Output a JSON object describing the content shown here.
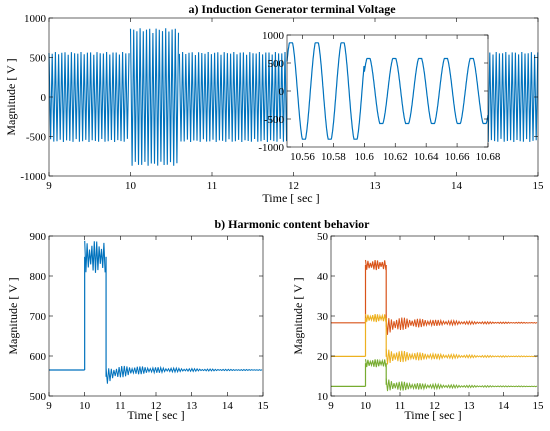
{
  "colors": {
    "primary": "#0072bd",
    "orange": "#d95319",
    "yellow": "#edb120",
    "green": "#77ac30"
  },
  "chart_data": [
    {
      "type": "line",
      "title": "a)  Induction Generator terminal Voltage",
      "xlabel": "Time  [ sec ]",
      "ylabel": "Magnitude  [ V ]",
      "xlim": [
        9,
        15
      ],
      "ylim": [
        -1000,
        1000
      ],
      "xticks": [
        "9",
        "10",
        "11",
        "12",
        "13",
        "14",
        "15"
      ],
      "yticks": [
        "-1000",
        "-500",
        "0",
        "500",
        "1000"
      ],
      "series": [
        {
          "color": "#0072bd",
          "segments": [
            {
              "x": [
                9,
                10.0
              ],
              "amplitude": 570
            },
            {
              "x": [
                10.0,
                10.6
              ],
              "amplitude": 870
            },
            {
              "x": [
                10.6,
                15
              ],
              "amplitude": 570
            }
          ]
        }
      ],
      "inset": {
        "xlim": [
          10.55,
          10.68
        ],
        "ylim": [
          -1000,
          1000
        ],
        "xticks": [
          "10.56",
          "10.58",
          "10.6",
          "10.62",
          "10.64",
          "10.66",
          "10.68"
        ],
        "yticks": [
          "-1000",
          "-500",
          "0",
          "500",
          "1000"
        ],
        "period": 0.0167,
        "before": {
          "x_end": 10.6,
          "amplitude": 860
        },
        "after": {
          "amplitude": 580
        }
      }
    },
    {
      "type": "line",
      "title": "b)  Harmonic content behavior",
      "xlabel": "Time  [ sec ]",
      "ylabel": "Magnitude  [ V ]",
      "xlim": [
        9,
        15
      ],
      "ylim": [
        500,
        900
      ],
      "xticks": [
        "9",
        "10",
        "11",
        "12",
        "13",
        "14",
        "15"
      ],
      "yticks": [
        "500",
        "600",
        "700",
        "800",
        "900"
      ],
      "series": [
        {
          "color": "#0072bd",
          "base": 565,
          "step": {
            "x_start": 10.0,
            "x_end": 10.6,
            "upper": 885,
            "lower": 805,
            "mid": 848
          },
          "after": {
            "start": 548,
            "oscillation": 20
          }
        }
      ]
    },
    {
      "type": "line",
      "xlabel": "Time  [ sec ]",
      "ylabel": "Magnitude  [ V ]",
      "xlim": [
        9,
        15
      ],
      "ylim": [
        10,
        50
      ],
      "xticks": [
        "9",
        "10",
        "11",
        "12",
        "13",
        "14",
        "15"
      ],
      "yticks": [
        "10",
        "20",
        "30",
        "40",
        "50"
      ],
      "series": [
        {
          "color": "#d95319",
          "base": 28.3,
          "step": {
            "x_start": 10.0,
            "x_end": 10.6,
            "upper": 44,
            "lower": 41.5
          },
          "after": {
            "start": 27.3,
            "oscillation": 2.2
          }
        },
        {
          "color": "#edb120",
          "base": 19.9,
          "step": {
            "x_start": 10.0,
            "x_end": 10.6,
            "upper": 30.5,
            "lower": 28.5
          },
          "after": {
            "start": 19.8,
            "oscillation": 2.0
          }
        },
        {
          "color": "#77ac30",
          "base": 12.4,
          "step": {
            "x_start": 10.0,
            "x_end": 10.6,
            "upper": 19.2,
            "lower": 17.2
          },
          "after": {
            "start": 12.8,
            "oscillation": 1.6
          }
        }
      ]
    }
  ]
}
